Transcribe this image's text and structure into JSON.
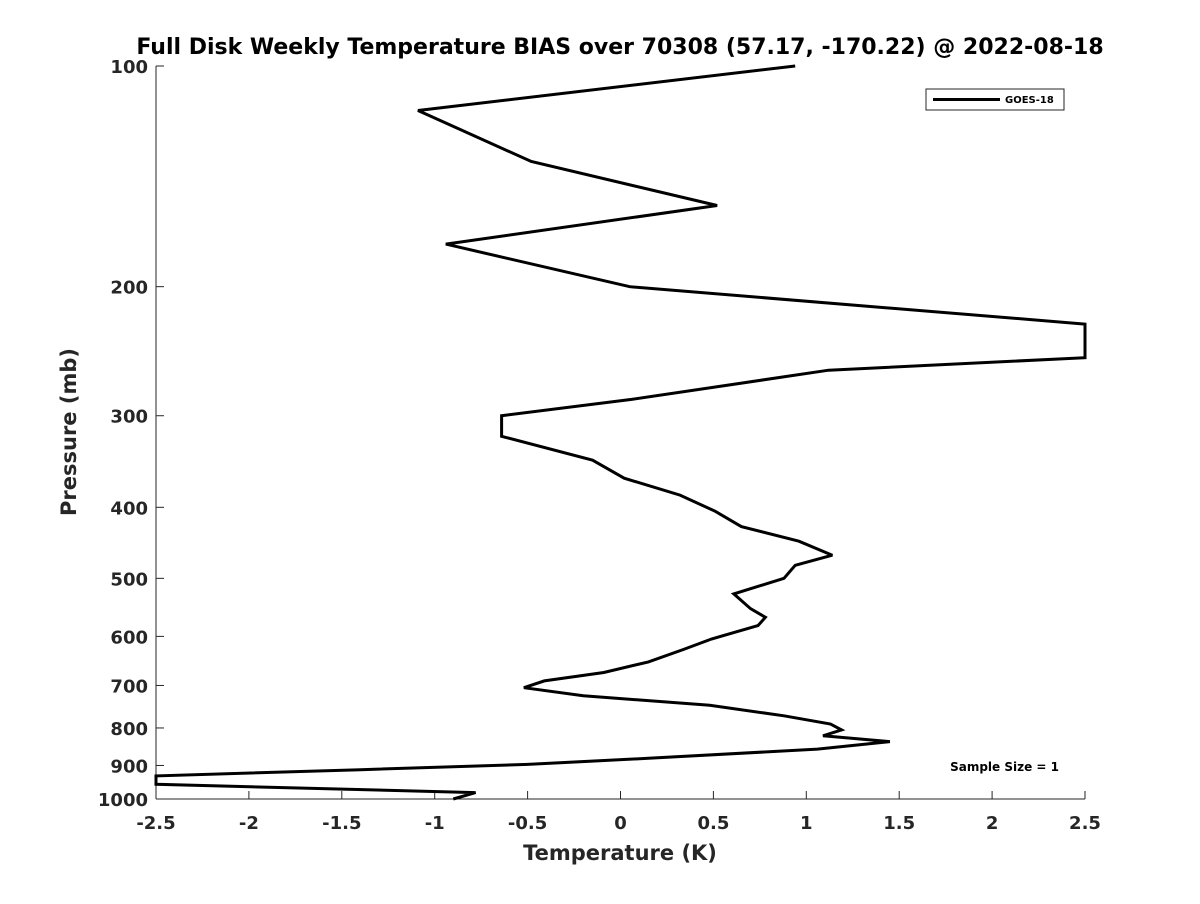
{
  "chart_data": {
    "type": "line",
    "title": "Full Disk Weekly Temperature BIAS over 70308 (57.17, -170.22) @ 2022-08-18",
    "xlabel": "Temperature (K)",
    "ylabel": "Pressure (mb)",
    "xlim": [
      -2.5,
      2.5
    ],
    "ylim": [
      100,
      1000
    ],
    "y_scale": "log",
    "y_reversed": true,
    "grid": false,
    "legend_position": "top-right",
    "x_ticks": [
      -2.5,
      -2,
      -1.5,
      -1,
      -0.5,
      0,
      0.5,
      1,
      1.5,
      2,
      2.5
    ],
    "x_tick_labels": [
      "-2.5",
      "-2",
      "-1.5",
      "-1",
      "-0.5",
      "0",
      "0.5",
      "1",
      "1.5",
      "2",
      "2.5"
    ],
    "y_ticks": [
      100,
      200,
      300,
      400,
      500,
      600,
      700,
      800,
      900,
      1000
    ],
    "y_tick_labels": [
      "100",
      "200",
      "300",
      "400",
      "500",
      "600",
      "700",
      "800",
      "900",
      "1000"
    ],
    "series": [
      {
        "name": "GOES-18",
        "color": "#000000",
        "points": [
          {
            "t": 0.94,
            "p": 100
          },
          {
            "t": -1.09,
            "p": 115
          },
          {
            "t": -0.48,
            "p": 135
          },
          {
            "t": 0.52,
            "p": 155
          },
          {
            "t": -0.94,
            "p": 175
          },
          {
            "t": 0.05,
            "p": 200
          },
          {
            "t": 2.5,
            "p": 225
          },
          {
            "t": 2.5,
            "p": 250
          },
          {
            "t": 1.12,
            "p": 260
          },
          {
            "t": 0.06,
            "p": 285
          },
          {
            "t": -0.64,
            "p": 300
          },
          {
            "t": -0.64,
            "p": 320
          },
          {
            "t": -0.15,
            "p": 345
          },
          {
            "t": 0.02,
            "p": 365
          },
          {
            "t": 0.32,
            "p": 385
          },
          {
            "t": 0.51,
            "p": 405
          },
          {
            "t": 0.65,
            "p": 425
          },
          {
            "t": 0.96,
            "p": 445
          },
          {
            "t": 1.14,
            "p": 465
          },
          {
            "t": 0.94,
            "p": 480
          },
          {
            "t": 0.88,
            "p": 500
          },
          {
            "t": 0.61,
            "p": 525
          },
          {
            "t": 0.7,
            "p": 550
          },
          {
            "t": 0.78,
            "p": 565
          },
          {
            "t": 0.74,
            "p": 580
          },
          {
            "t": 0.49,
            "p": 605
          },
          {
            "t": 0.34,
            "p": 625
          },
          {
            "t": 0.15,
            "p": 650
          },
          {
            "t": -0.09,
            "p": 672
          },
          {
            "t": -0.41,
            "p": 690
          },
          {
            "t": -0.52,
            "p": 705
          },
          {
            "t": -0.2,
            "p": 723
          },
          {
            "t": 0.48,
            "p": 745
          },
          {
            "t": 0.88,
            "p": 770
          },
          {
            "t": 1.13,
            "p": 790
          },
          {
            "t": 1.19,
            "p": 805
          },
          {
            "t": 1.09,
            "p": 820
          },
          {
            "t": 1.45,
            "p": 835
          },
          {
            "t": 1.06,
            "p": 855
          },
          {
            "t": 0.15,
            "p": 880
          },
          {
            "t": -0.5,
            "p": 897
          },
          {
            "t": -1.4,
            "p": 912
          },
          {
            "t": -2.5,
            "p": 930
          },
          {
            "t": -2.5,
            "p": 955
          },
          {
            "t": -0.78,
            "p": 980
          },
          {
            "t": -0.9,
            "p": 1000
          }
        ]
      }
    ],
    "annotations": [
      {
        "text": "Sample Size = 1",
        "position": "bottom-right"
      }
    ]
  }
}
